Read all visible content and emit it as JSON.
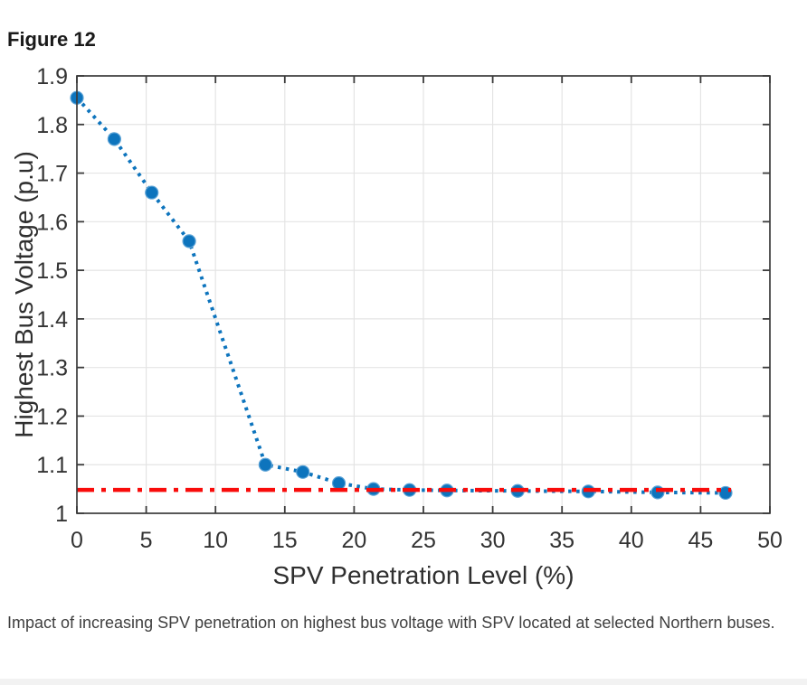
{
  "page": {
    "figure_label": "Figure 12",
    "caption": "Impact of increasing SPV penetration on highest bus voltage with SPV located at selected Northern buses."
  },
  "colors": {
    "series_blue": "#0d74bd",
    "marker_edge_blue": "#5aa2d6",
    "reference_red": "#f90c0b",
    "axis_box": "#3b3b3b",
    "tick_label": "#333333",
    "axis_label": "#2f2f2f",
    "grid": "#e4e4e4",
    "heading_text": "#1a1a1a",
    "caption_text": "#3f3f3f"
  },
  "chart_data": {
    "type": "line",
    "title": "",
    "xlabel": "SPV Penetration Level (%)",
    "ylabel": "Highest Bus Voltage (p.u)",
    "xlim": [
      0,
      50
    ],
    "ylim": [
      1,
      1.9
    ],
    "grid": true,
    "legend": "none",
    "x_ticks": {
      "values": [
        0,
        5,
        10,
        15,
        20,
        25,
        30,
        35,
        40,
        45,
        50
      ],
      "labels": [
        "0",
        "5",
        "10",
        "15",
        "20",
        "25",
        "30",
        "35",
        "40",
        "45",
        "50"
      ]
    },
    "y_ticks": {
      "values": [
        1,
        1.1,
        1.2,
        1.3,
        1.4,
        1.5,
        1.6,
        1.7,
        1.8,
        1.9
      ],
      "labels": [
        "1",
        "1.1",
        "1.2",
        "1.3",
        "1.4",
        "1.5",
        "1.6",
        "1.7",
        "1.8",
        "1.9"
      ]
    },
    "series": [
      {
        "name": "highest-bus-voltage",
        "style": "dotted-line-with-circle-markers",
        "color": "#0d74bd",
        "x": [
          0,
          2.7,
          5.4,
          8.1,
          13.6,
          16.3,
          18.9,
          21.4,
          24.0,
          26.7,
          31.8,
          36.9,
          41.9,
          46.8
        ],
        "y": [
          1.855,
          1.77,
          1.66,
          1.56,
          1.1,
          1.085,
          1.062,
          1.05,
          1.048,
          1.047,
          1.046,
          1.045,
          1.043,
          1.042
        ]
      }
    ],
    "reference_line": {
      "name": "voltage-limit-reference",
      "style": "dash-dot-horizontal",
      "color": "#f90c0b",
      "y_value": 1.048,
      "x_range": [
        0,
        47.2
      ]
    }
  }
}
